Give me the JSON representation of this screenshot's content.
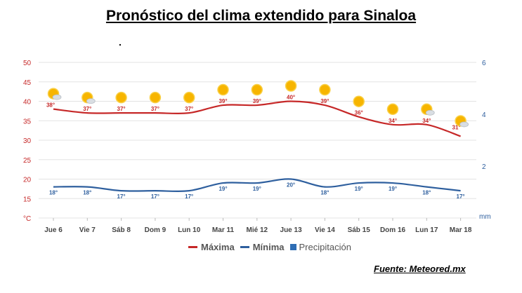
{
  "page": {
    "title": "Pronóstico del clima extendido para Sinaloa",
    "source": "Fuente: Meteored.mx",
    "stray_mark": "."
  },
  "legend": [
    {
      "label": "Máxima",
      "color": "#c62828",
      "kind": "line"
    },
    {
      "label": "Mínima",
      "color": "#2e5f9e",
      "kind": "line"
    },
    {
      "label": "Precipitación",
      "color": "#2e6db4",
      "kind": "box"
    }
  ],
  "chart_data": {
    "type": "line",
    "title": "Pronóstico del clima extendido para Sinaloa",
    "categories": [
      "Jue 6",
      "Vie 7",
      "Sáb 8",
      "Dom 9",
      "Lun 10",
      "Mar 11",
      "Mié 12",
      "Jue 13",
      "Vie 14",
      "Sáb 15",
      "Dom 16",
      "Lun 17",
      "Mar 18"
    ],
    "series": [
      {
        "name": "Máxima",
        "color": "#c62828",
        "values": [
          38,
          37,
          37,
          37,
          37,
          39,
          39,
          40,
          39,
          36,
          34,
          34,
          31
        ],
        "labels": [
          "38°",
          "37°",
          "37°",
          "37°",
          "37°",
          "39°",
          "39°",
          "40°",
          "39°",
          "36°",
          "34°",
          "34°",
          "31°"
        ]
      },
      {
        "name": "Mínima",
        "color": "#2e5f9e",
        "values": [
          18,
          18,
          17,
          17,
          17,
          19,
          19,
          20,
          18,
          19,
          19,
          18,
          17
        ],
        "labels": [
          "18°",
          "18°",
          "17°",
          "17°",
          "17°",
          "19°",
          "19°",
          "20°",
          "18°",
          "19°",
          "19°",
          "18°",
          "17°"
        ]
      }
    ],
    "weather_icons": [
      "sun-cloud",
      "sun-cloud",
      "sun",
      "sun",
      "sun",
      "sun",
      "sun",
      "sun",
      "sun",
      "sun",
      "sun",
      "sun-cloud",
      "sun-cloud"
    ],
    "y_left": {
      "ticks": [
        "50",
        "45",
        "40",
        "35",
        "30",
        "25",
        "20",
        "15",
        "°C"
      ],
      "unit": "°C",
      "ylim": [
        10,
        50
      ]
    },
    "y_right": {
      "ticks": [
        "6",
        "4",
        "2"
      ],
      "unit": "mm"
    },
    "grid": true
  }
}
